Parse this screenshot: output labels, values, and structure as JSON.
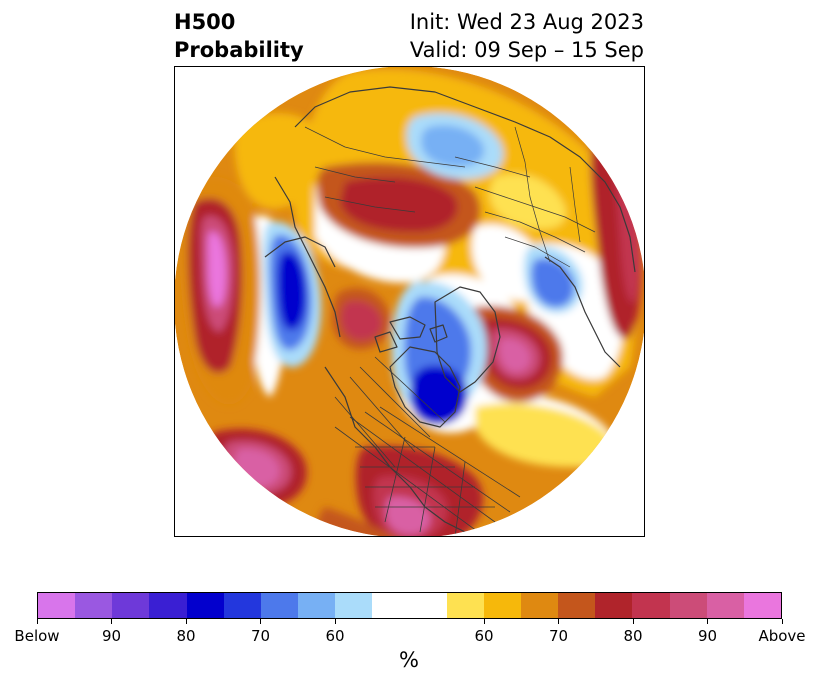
{
  "title": {
    "line1": "H500",
    "line2": "Probability",
    "init": "Init: Wed 23 Aug 2023",
    "valid": "Valid: 09 Sep – 15 Sep"
  },
  "map": {
    "projection": "north-polar-stereographic",
    "coastline_color": "#3a3a3a",
    "features": [
      {
        "kind": "below",
        "level": 90,
        "region": "northeast-pacific"
      },
      {
        "kind": "below",
        "level": 90,
        "region": "greenland-labrador"
      },
      {
        "kind": "below",
        "level": 60,
        "region": "northern-europe"
      },
      {
        "kind": "below",
        "level": 70,
        "region": "eastern-europe"
      },
      {
        "kind": "above",
        "level": 90,
        "region": "north-atlantic"
      },
      {
        "kind": "above",
        "level": 90,
        "region": "central-pacific"
      },
      {
        "kind": "above",
        "level": 80,
        "region": "siberia"
      },
      {
        "kind": "above",
        "level": 80,
        "region": "arctic-ocean"
      },
      {
        "kind": "above",
        "level": 80,
        "region": "eastern-pacific"
      },
      {
        "kind": "above",
        "level": 80,
        "region": "southern-united-states"
      }
    ]
  },
  "colorbar": {
    "unit": "%",
    "below_colors": [
      "#d875eb",
      "#9a58e1",
      "#6e39d9",
      "#3a1fd3",
      "#0300cd",
      "#2337dd",
      "#4d79eb",
      "#77b0f4",
      "#aadcfa"
    ],
    "neutral_color": "#ffffff",
    "above_colors": [
      "#fee151",
      "#f6b80b",
      "#df8911",
      "#c4561c",
      "#b0242b",
      "#c2344f",
      "#cc4c78",
      "#d960a4",
      "#ea76de"
    ],
    "tick_labels": [
      "Below",
      "90",
      "80",
      "70",
      "60",
      "60",
      "70",
      "80",
      "90",
      "Above"
    ]
  }
}
